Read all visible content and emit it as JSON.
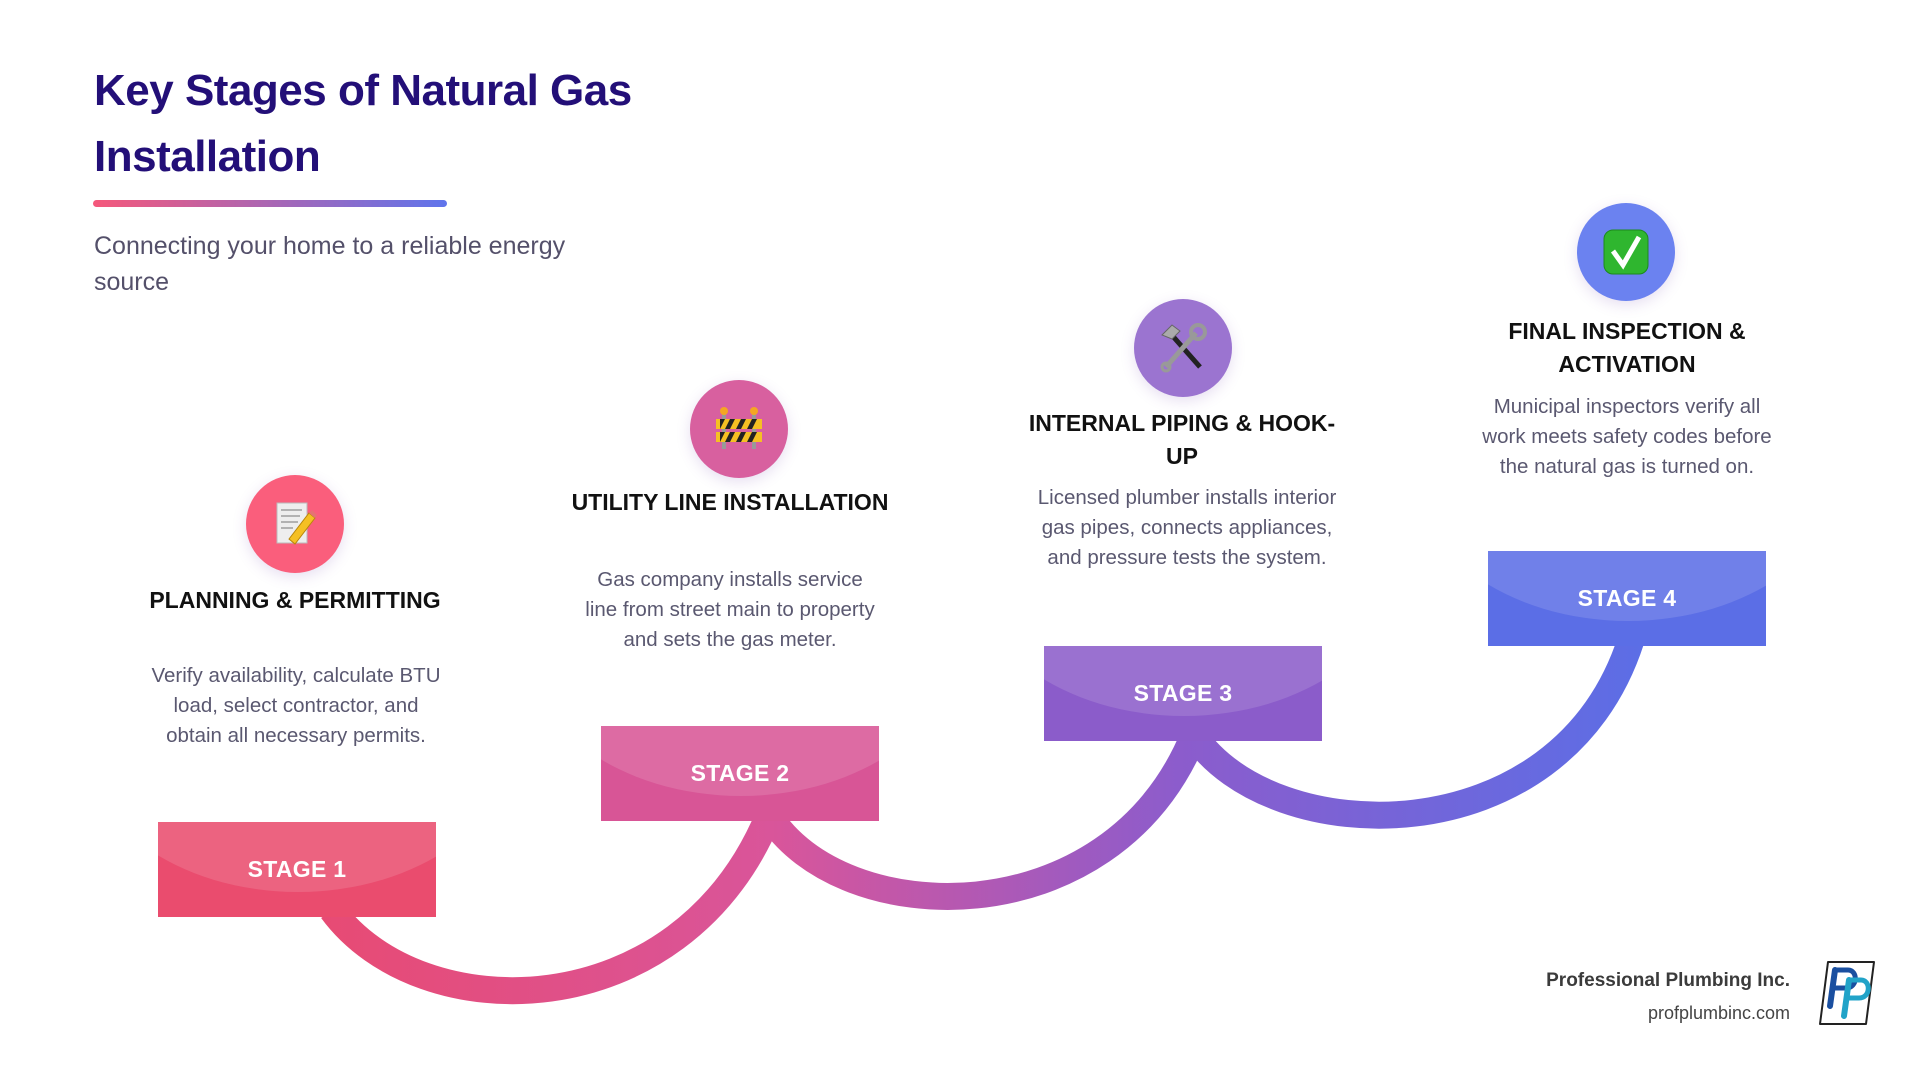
{
  "header": {
    "title": "Key Stages of Natural Gas Installation",
    "subtitle": "Connecting your home to a reliable energy source"
  },
  "colors": {
    "start": "#f5587b",
    "end": "#5f74ec",
    "title": "#230f78"
  },
  "stages": [
    {
      "label": "STAGE 1",
      "heading": "PLANNING & PERMITTING",
      "description": "Verify availability, calculate BTU load, select contractor, and obtain all necessary permits.",
      "icon": "memo-pencil-icon",
      "color": "#ea4c6e",
      "icon_bg": "#fa5e7c"
    },
    {
      "label": "STAGE 2",
      "heading": "UTILITY LINE INSTALLATION",
      "description": "Gas company installs service line from street main to property and sets the gas meter.",
      "icon": "construction-barrier-icon",
      "color": "#d85596",
      "icon_bg": "#d8609f"
    },
    {
      "label": "STAGE 3",
      "heading": "INTERNAL PIPING & HOOK-UP",
      "description": "Licensed plumber installs interior gas pipes, connects appliances, and pressure tests the system.",
      "icon": "hammer-wrench-icon",
      "color": "#8b5cca",
      "icon_bg": "#9b74d0"
    },
    {
      "label": "STAGE 4",
      "heading": "FINAL INSPECTION & ACTIVATION",
      "description": "Municipal inspectors verify all work meets safety codes before the natural gas is turned on.",
      "icon": "check-mark-icon",
      "color": "#5b6ee6",
      "icon_bg": "#6b82f0"
    }
  ],
  "footer": {
    "company": "Professional Plumbing Inc.",
    "website": "profplumbinc.com",
    "logo_text": "PP"
  }
}
